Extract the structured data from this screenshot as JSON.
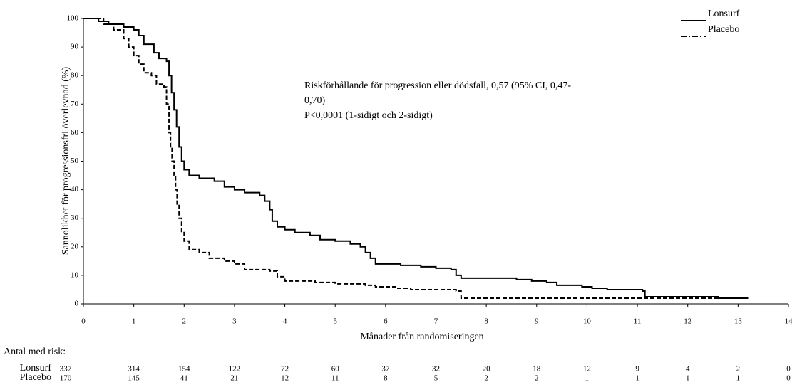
{
  "chart_data": {
    "type": "line",
    "step": true,
    "ylabel": "Sannolikhet för progressionsfri överlevnad (%)",
    "xlabel": "Månader från randomiseringen",
    "xlim": [
      0,
      14
    ],
    "ylim": [
      0,
      100
    ],
    "xticks": [
      0,
      1,
      2,
      3,
      4,
      5,
      6,
      7,
      8,
      9,
      10,
      11,
      12,
      13,
      14
    ],
    "yticks": [
      0,
      10,
      20,
      30,
      40,
      50,
      60,
      70,
      80,
      90,
      100
    ],
    "annotation": [
      "Riskförhållande för progression eller dödsfall, 0,57 (95% CI, 0,47-",
      "0,70)",
      "P<0,0001 (1-sidigt och 2-sidigt)"
    ],
    "series": [
      {
        "name": "Lonsurf",
        "color": "#000000",
        "dash": "solid",
        "x": [
          0,
          0.3,
          0.5,
          0.8,
          1,
          1.1,
          1.2,
          1.4,
          1.5,
          1.65,
          1.7,
          1.75,
          1.8,
          1.85,
          1.9,
          1.95,
          2,
          2.1,
          2.3,
          2.6,
          2.8,
          3.0,
          3.2,
          3.5,
          3.6,
          3.7,
          3.75,
          3.85,
          4.0,
          4.2,
          4.5,
          4.7,
          5.0,
          5.3,
          5.5,
          5.6,
          5.7,
          5.8,
          6.3,
          6.7,
          7.0,
          7.3,
          7.4,
          7.5,
          8.6,
          8.9,
          9.2,
          9.4,
          9.9,
          10.1,
          10.4,
          11.1,
          11.15,
          12.5,
          12.6,
          13.2
        ],
        "values": [
          100,
          99,
          98,
          97,
          96,
          94,
          91,
          88,
          86,
          85,
          80,
          74,
          68,
          62,
          55,
          50,
          47,
          45,
          44,
          43,
          41,
          40,
          39,
          38,
          36,
          33,
          29,
          27,
          26,
          25,
          24,
          22.5,
          22,
          21,
          20,
          18,
          16,
          14,
          13.5,
          13,
          12.5,
          12,
          10,
          9,
          8.5,
          8,
          7.5,
          6.5,
          6,
          5.5,
          5,
          4.5,
          2.5,
          2.5,
          2,
          2
        ]
      },
      {
        "name": "Placebo",
        "color": "#000000",
        "dash": "dashed",
        "x": [
          0,
          0.4,
          0.6,
          0.8,
          0.9,
          1.0,
          1.1,
          1.2,
          1.35,
          1.45,
          1.6,
          1.65,
          1.7,
          1.73,
          1.76,
          1.8,
          1.83,
          1.86,
          1.9,
          1.95,
          2.0,
          2.1,
          2.3,
          2.5,
          2.8,
          3.0,
          3.2,
          3.7,
          3.85,
          4.0,
          4.6,
          5.0,
          5.6,
          5.8,
          6.2,
          6.5,
          7.4,
          7.5,
          13.2
        ],
        "values": [
          100,
          98,
          96,
          93,
          90,
          87,
          84,
          81,
          80,
          77,
          76,
          70,
          60,
          55,
          50,
          45,
          40,
          35,
          30,
          25,
          22,
          19,
          18,
          16,
          15,
          14,
          12,
          11.5,
          9.5,
          8,
          7.5,
          7,
          6.5,
          6,
          5.5,
          5,
          4.5,
          2,
          2
        ]
      }
    ],
    "risk_table": {
      "title": "Antal med risk:",
      "rows": [
        {
          "name": "Lonsurf",
          "values": [
            337,
            314,
            154,
            122,
            72,
            60,
            37,
            32,
            20,
            18,
            12,
            9,
            4,
            2,
            0
          ]
        },
        {
          "name": "Placebo",
          "values": [
            170,
            145,
            41,
            21,
            12,
            11,
            8,
            5,
            2,
            2,
            1,
            1,
            1,
            1,
            0
          ]
        }
      ]
    }
  }
}
